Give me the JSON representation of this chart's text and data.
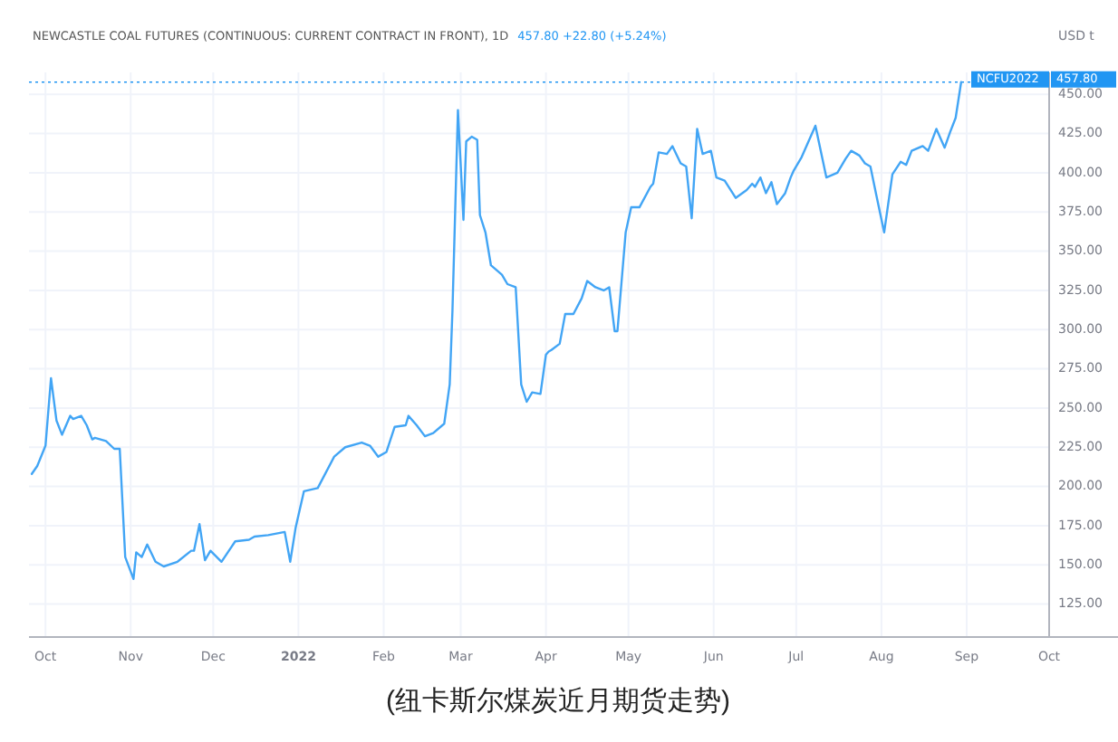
{
  "chart_data": {
    "type": "line",
    "title": "NEWCASTLE COAL FUTURES (CONTINUOUS: CURRENT CONTRACT IN FRONT), 1D",
    "subtitle": "457.80 +22.80 (+5.24%)",
    "ylabel": "USD t",
    "annotations": [
      "(纽卡斯尔煤炭近月期货走势)",
      "457.80"
    ],
    "xlim": [
      "2021-09-25",
      "2022-10-01"
    ],
    "ylim": [
      104,
      464
    ],
    "xticks": [
      {
        "value": "2021-10-01",
        "label": "Oct"
      },
      {
        "value": "2021-11-01",
        "label": "Nov"
      },
      {
        "value": "2021-12-01",
        "label": "Dec"
      },
      {
        "value": "2022-01-01",
        "label": "2022"
      },
      {
        "value": "2022-02-01",
        "label": "Feb"
      },
      {
        "value": "2022-03-01",
        "label": "Mar"
      },
      {
        "value": "2022-04-01",
        "label": "Apr"
      },
      {
        "value": "2022-05-01",
        "label": "May"
      },
      {
        "value": "2022-06-01",
        "label": "Jun"
      },
      {
        "value": "2022-07-01",
        "label": "Jul"
      },
      {
        "value": "2022-08-01",
        "label": "Aug"
      },
      {
        "value": "2022-09-01",
        "label": "Sep"
      },
      {
        "value": "2022-10-01",
        "label": "Oct"
      }
    ],
    "yticks": [
      {
        "value": 125,
        "label": "125.00"
      },
      {
        "value": 150,
        "label": "150.00"
      },
      {
        "value": 175,
        "label": "175.00"
      },
      {
        "value": 200,
        "label": "200.00"
      },
      {
        "value": 225,
        "label": "225.00"
      },
      {
        "value": 250,
        "label": "250.00"
      },
      {
        "value": 275,
        "label": "275.00"
      },
      {
        "value": 300,
        "label": "300.00"
      },
      {
        "value": 325,
        "label": "325.00"
      },
      {
        "value": 350,
        "label": "350.00"
      },
      {
        "value": 375,
        "label": "375.00"
      },
      {
        "value": 400,
        "label": "400.00"
      },
      {
        "value": 425,
        "label": "425.00"
      },
      {
        "value": 450,
        "label": "450.00"
      }
    ],
    "grid": true,
    "line_style": "solid",
    "ref_lines": [
      {
        "axis": "y",
        "value": 457.8,
        "label": "NCFU2022",
        "color": "#2196f3",
        "line_style": "dotted"
      }
    ],
    "x": [
      "2021-09-26",
      "2021-09-28",
      "2021-10-01",
      "2021-10-03",
      "2021-10-05",
      "2021-10-07",
      "2021-10-10",
      "2021-10-11",
      "2021-10-14",
      "2021-10-16",
      "2021-10-18",
      "2021-10-19",
      "2021-10-23",
      "2021-10-26",
      "2021-10-28",
      "2021-10-30",
      "2021-11-02",
      "2021-11-03",
      "2021-11-05",
      "2021-11-07",
      "2021-11-10",
      "2021-11-13",
      "2021-11-18",
      "2021-11-23",
      "2021-11-24",
      "2021-11-26",
      "2021-11-28",
      "2021-11-30",
      "2021-12-04",
      "2021-12-09",
      "2021-12-14",
      "2021-12-16",
      "2021-12-21",
      "2021-12-27",
      "2021-12-29",
      "2021-12-31",
      "2022-01-03",
      "2022-01-08",
      "2022-01-14",
      "2022-01-18",
      "2022-01-24",
      "2022-01-27",
      "2022-01-30",
      "2022-02-02",
      "2022-02-05",
      "2022-02-09",
      "2022-02-10",
      "2022-02-13",
      "2022-02-16",
      "2022-02-19",
      "2022-02-23",
      "2022-02-25",
      "2022-02-26",
      "2022-02-28",
      "2022-03-02",
      "2022-03-03",
      "2022-03-05",
      "2022-03-07",
      "2022-03-08",
      "2022-03-10",
      "2022-03-12",
      "2022-03-16",
      "2022-03-18",
      "2022-03-21",
      "2022-03-23",
      "2022-03-25",
      "2022-03-27",
      "2022-03-30",
      "2022-04-01",
      "2022-04-02",
      "2022-04-03",
      "2022-04-06",
      "2022-04-08",
      "2022-04-11",
      "2022-04-14",
      "2022-04-16",
      "2022-04-19",
      "2022-04-22",
      "2022-04-24",
      "2022-04-26",
      "2022-04-27",
      "2022-04-30",
      "2022-05-02",
      "2022-05-05",
      "2022-05-09",
      "2022-05-10",
      "2022-05-12",
      "2022-05-15",
      "2022-05-17",
      "2022-05-20",
      "2022-05-22",
      "2022-05-24",
      "2022-05-26",
      "2022-05-28",
      "2022-05-31",
      "2022-06-02",
      "2022-06-05",
      "2022-06-09",
      "2022-06-13",
      "2022-06-15",
      "2022-06-16",
      "2022-06-18",
      "2022-06-20",
      "2022-06-22",
      "2022-06-24",
      "2022-06-27",
      "2022-06-29",
      "2022-06-30",
      "2022-07-03",
      "2022-07-08",
      "2022-07-12",
      "2022-07-16",
      "2022-07-19",
      "2022-07-21",
      "2022-07-24",
      "2022-07-26",
      "2022-07-28",
      "2022-07-30",
      "2022-08-02",
      "2022-08-05",
      "2022-08-08",
      "2022-08-10",
      "2022-08-12",
      "2022-08-16",
      "2022-08-18",
      "2022-08-21",
      "2022-08-24",
      "2022-08-26",
      "2022-08-28",
      "2022-08-30"
    ],
    "series": [
      {
        "color": "#42a5f5",
        "values": [
          208,
          213,
          226,
          269,
          242,
          233,
          245,
          243,
          245,
          239,
          230,
          231,
          229,
          224,
          224,
          155,
          141,
          158,
          155,
          163,
          152,
          149,
          152,
          159,
          159,
          176,
          153,
          159,
          152,
          165,
          166,
          168,
          169,
          171,
          152,
          174,
          197,
          199,
          219,
          225,
          228,
          226,
          219,
          222,
          238,
          239,
          245,
          239,
          232,
          234,
          240,
          265,
          312,
          440,
          370,
          420,
          423,
          421,
          373,
          362,
          341,
          335,
          329,
          327,
          265,
          254,
          260,
          259,
          284,
          286,
          287,
          291,
          310,
          310,
          320,
          331,
          327,
          325,
          327,
          299,
          299,
          362,
          378,
          378,
          391,
          393,
          413,
          412,
          417,
          406,
          404,
          371,
          428,
          412,
          414,
          397,
          395,
          384,
          389,
          393,
          391,
          397,
          387,
          394,
          380,
          387,
          397,
          401,
          410,
          430,
          397,
          400,
          409,
          414,
          411,
          406,
          404,
          387,
          362,
          399,
          407,
          405,
          414,
          417,
          414,
          428,
          416,
          426,
          435,
          457.8
        ]
      }
    ]
  }
}
